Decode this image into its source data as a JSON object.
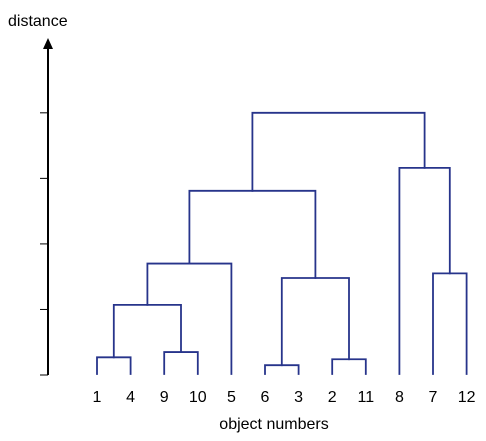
{
  "chart_data": {
    "type": "dendrogram",
    "ylabel": "distance",
    "xlabel": "object numbers",
    "leaf_order": [
      "1",
      "4",
      "9",
      "10",
      "5",
      "6",
      "3",
      "2",
      "11",
      "8",
      "7",
      "12"
    ],
    "y_ticks": [
      0,
      1,
      2,
      3,
      4
    ],
    "ylim": [
      0,
      5.05
    ],
    "merges": [
      {
        "left": "1",
        "right": "4",
        "height": 0.27
      },
      {
        "left": "9",
        "right": "10",
        "height": 0.35
      },
      {
        "left": "6",
        "right": "3",
        "height": 0.15
      },
      {
        "left": "2",
        "right": "11",
        "height": 0.24
      },
      {
        "left": "C(1,4)",
        "right": "C(9,10)",
        "height": 1.07
      },
      {
        "left": "C(1,4,9,10)",
        "right": "5",
        "height": 1.7
      },
      {
        "left": "C(6,3)",
        "right": "C(2,11)",
        "height": 1.48
      },
      {
        "left": "C(1,4,9,10,5)",
        "right": "C(6,3,2,11)",
        "height": 2.81
      },
      {
        "left": "7",
        "right": "12",
        "height": 1.55
      },
      {
        "left": "8",
        "right": "C(7,12)",
        "height": 3.16
      },
      {
        "left": "C(1,4,9,10,5,6,3,2,11)",
        "right": "C(8,7,12)",
        "height": 4.0
      }
    ],
    "grid": false,
    "legend": "none",
    "colors": {
      "link": "#27348b",
      "axis": "#000000",
      "text": "#000000"
    }
  }
}
